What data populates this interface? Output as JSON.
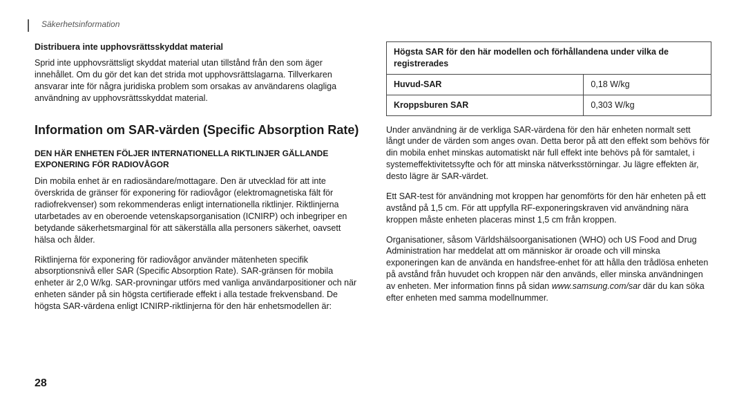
{
  "header": {
    "section_label": "Säkerhetsinformation"
  },
  "left": {
    "sub1": "Distribuera inte upphovsrättsskyddat material",
    "p1": "Sprid inte upphovsrättsligt skyddat material utan tillstånd från den som äger innehållet. Om du gör det kan det strida mot upphovsrättslagarna. Tillverkaren ansvarar inte för några juridiska problem som orsakas av användarens olagliga användning av upphovsrättsskyddat material.",
    "h2": "Information om SAR-värden (Specific Absorption Rate)",
    "caps": "DEN HÄR ENHETEN FÖLJER INTERNATIONELLA RIKTLINJER GÄLLANDE EXPONERING FÖR RADIOVÅGOR",
    "p2": "Din mobila enhet är en radiosändare/mottagare. Den är utvecklad för att inte överskrida de gränser för exponering för radiovågor (elektromagnetiska fält för radiofrekvenser) som rekommenderas enligt internationella riktlinjer. Riktlinjerna utarbetades av en oberoende vetenskapsorganisation (ICNIRP) och inbegriper en betydande säkerhetsmarginal för att säkerställa alla personers säkerhet, oavsett hälsa och ålder.",
    "p3": "Riktlinjerna för exponering för radiovågor använder mätenheten specifik absorptionsnivå eller SAR (Specific Absorption Rate). SAR-gränsen för mobila enheter är 2,0 W/kg. SAR-provningar utförs med vanliga användarpositioner och när enheten sänder på sin högsta certifierade effekt i alla testade frekvensband. De högsta SAR-värdena enligt ICNIRP-riktlinjerna för den här enhetsmodellen är:"
  },
  "right": {
    "table": {
      "header": "Högsta SAR för den här modellen och förhållandena under vilka de registrerades",
      "row1_label": "Huvud-SAR",
      "row1_value": "0,18 W/kg",
      "row2_label": "Kroppsburen SAR",
      "row2_value": "0,303 W/kg"
    },
    "p1": "Under användning är de verkliga SAR-värdena för den här enheten normalt sett långt under de värden som anges ovan. Detta beror på att den effekt som behövs för din mobila enhet minskas automatiskt när full effekt inte behövs på för samtalet, i systemeffektivitetssyfte och för att minska nätverksstörningar. Ju lägre effekten är, desto lägre är SAR-värdet.",
    "p2": "Ett SAR-test för användning mot kroppen har genomförts för den här enheten på ett avstånd på 1,5 cm. För att uppfylla RF-exponeringskraven vid användning nära kroppen måste enheten placeras minst 1,5 cm från kroppen.",
    "p3a": "Organisationer, såsom Världshälsoorganisationen (WHO) och US Food and Drug Administration har meddelat att om människor är oroade och vill minska exponeringen kan de använda en handsfree-enhet för att hålla den trådlösa enheten på avstånd från huvudet och kroppen när den används, eller minska användningen av enheten. Mer information finns på sidan ",
    "p3_url": "www.samsung.com/sar",
    "p3b": " där du kan söka efter enheten med samma modellnummer."
  },
  "pagenum": "28"
}
